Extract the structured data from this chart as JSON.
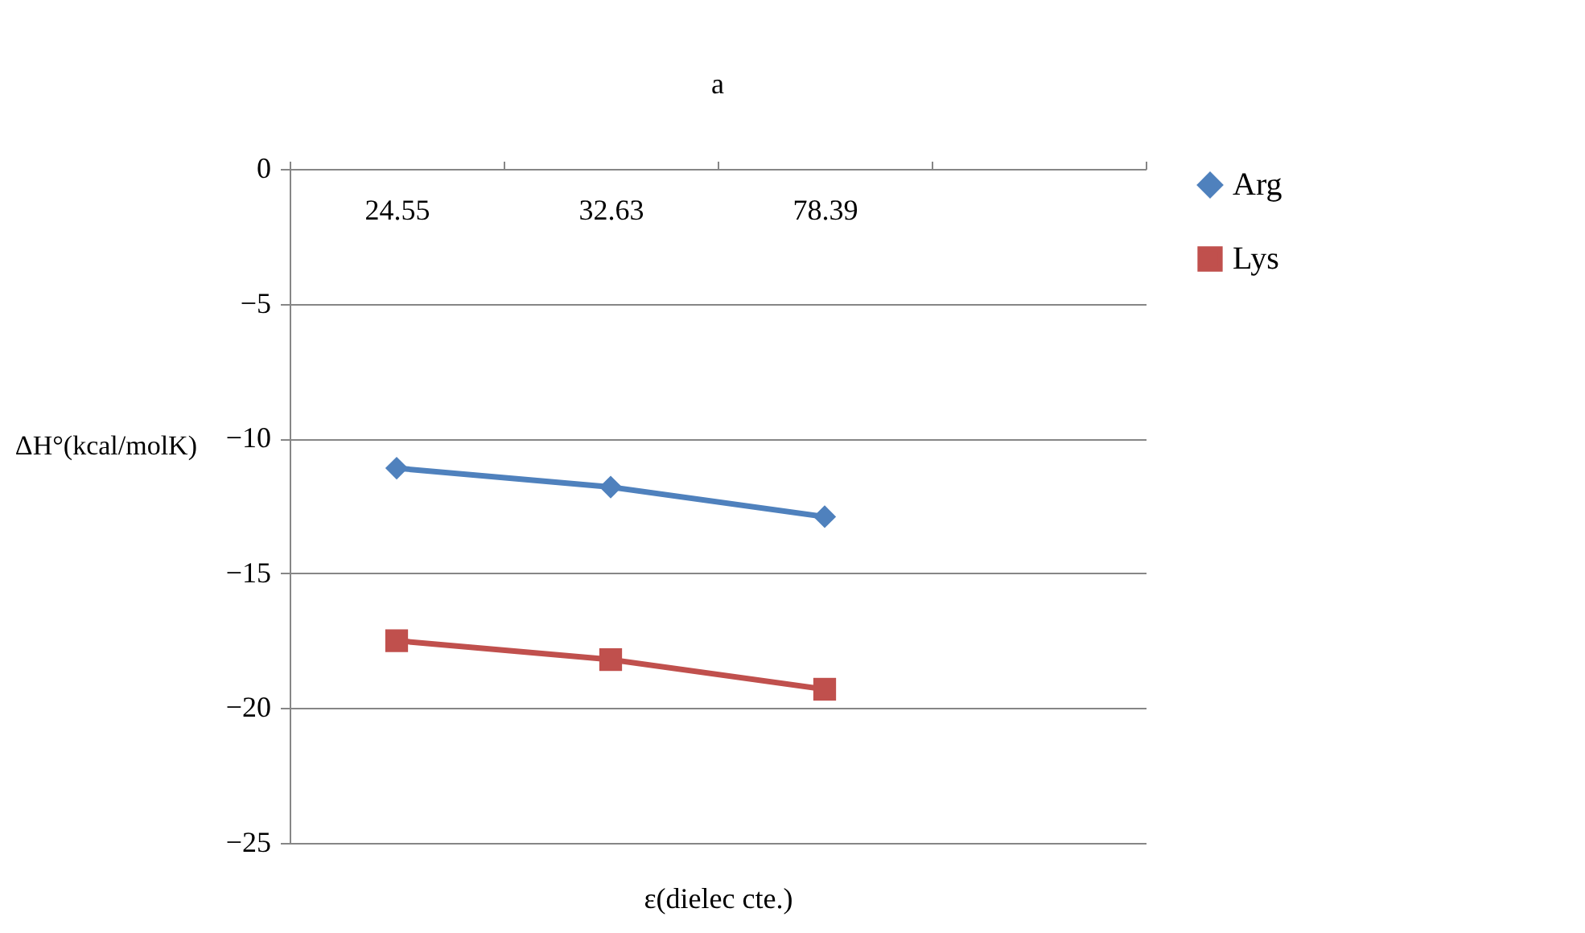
{
  "chart_data": {
    "type": "line",
    "title": "a",
    "xlabel": "ε(dielec cte.)",
    "ylabel": "ΔH°(kcal/molK)",
    "categories": [
      "24.55",
      "32.63",
      "78.39",
      null
    ],
    "series": [
      {
        "name": "Arg",
        "color": "#4f81bd",
        "marker": "diamond",
        "values": [
          -11.1,
          -11.8,
          -12.9,
          null
        ]
      },
      {
        "name": "Lys",
        "color": "#c0504d",
        "marker": "square",
        "values": [
          -17.5,
          -18.2,
          -19.3,
          null
        ]
      }
    ],
    "ylim": [
      -25,
      0
    ],
    "yticks": [
      -25,
      -20,
      -15,
      -10,
      -5,
      0
    ],
    "grid": "y",
    "legend": "right"
  }
}
